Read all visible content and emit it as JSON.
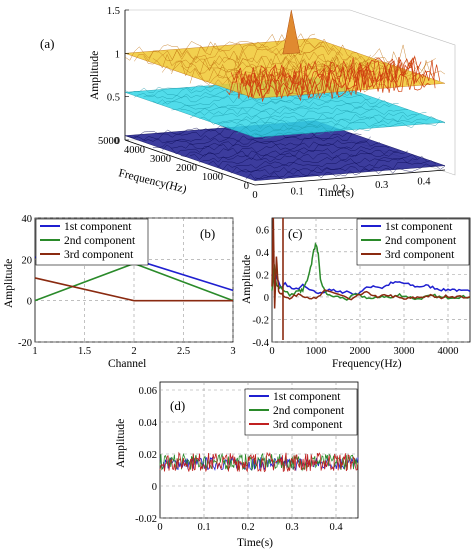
{
  "figure": {
    "panel_a": "(a)",
    "panel_b": "(b)",
    "panel_c": "(c)",
    "panel_d": "(d)"
  },
  "chart_data": [
    {
      "panel": "(a)",
      "type": "area",
      "zlabel": "Amplitude",
      "xlabel": "Time(s)",
      "ylabel": "Frequency(Hz)",
      "z_ticks": [
        "0",
        "0.5",
        "1",
        "1.5"
      ],
      "t_ticks": [
        "0",
        "0.1",
        "0.2",
        "0.3",
        "0.4"
      ],
      "f_ticks": [
        "0",
        "1000",
        "2000",
        "3000",
        "4000",
        "5000"
      ],
      "series": [
        {
          "color": "#1a1a8c",
          "level": 0.05
        },
        {
          "color": "#33d6e6",
          "level": 0.55
        },
        {
          "color": "#f0c830",
          "level": 1.0
        }
      ],
      "colors": [
        "#1a1a8c",
        "#33d6e6",
        "#f0c830",
        "#d04010"
      ]
    },
    {
      "panel": "(b)",
      "type": "line",
      "xlabel": "Channel",
      "ylabel": "Amplitude",
      "xlim": [
        1,
        3
      ],
      "ylim": [
        -20,
        40
      ],
      "x_ticks": [
        "1",
        "1.5",
        "2",
        "2.5",
        "3"
      ],
      "y_ticks": [
        "-20",
        "0",
        "20",
        "40"
      ],
      "x": [
        1,
        2,
        3
      ],
      "series": [
        {
          "name": "1st component",
          "color": "#1f1fd0",
          "values": [
            21,
            20,
            5
          ]
        },
        {
          "name": "2nd component",
          "color": "#2a8a2a",
          "values": [
            0,
            18,
            0
          ]
        },
        {
          "name": "3rd component",
          "color": "#8a2a10",
          "values": [
            11,
            0,
            0
          ]
        }
      ],
      "legend": "top-left"
    },
    {
      "panel": "(c)",
      "type": "line",
      "xlabel": "Frequency(Hz)",
      "ylabel": "Amplitude",
      "xlim": [
        0,
        4500
      ],
      "ylim": [
        -0.4,
        0.7
      ],
      "x_ticks": [
        "0",
        "1000",
        "2000",
        "3000",
        "4000"
      ],
      "y_ticks": [
        "-0.4",
        "-0.2",
        "0",
        "0.2",
        "0.4",
        "0.6"
      ],
      "series": [
        {
          "name": "1st component",
          "color": "#1f1fd0",
          "x": [
            0,
            50,
            100,
            200,
            300,
            500,
            700,
            900,
            1100,
            1300,
            1500,
            1700,
            1900,
            2100,
            2300,
            2500,
            2700,
            2900,
            3100,
            3300,
            3500,
            3700,
            3900,
            4100,
            4300,
            4500
          ],
          "values": [
            0.2,
            0.25,
            0.18,
            0.08,
            0.12,
            0.06,
            0.1,
            0.05,
            0.03,
            0.07,
            0.04,
            0.05,
            0.02,
            0.07,
            0.1,
            0.08,
            0.12,
            0.13,
            0.11,
            0.09,
            0.1,
            0.08,
            0.06,
            0.07,
            0.05,
            0.05
          ]
        },
        {
          "name": "2nd component",
          "color": "#2a8a2a",
          "x": [
            0,
            50,
            100,
            200,
            400,
            600,
            700,
            800,
            900,
            950,
            1000,
            1050,
            1100,
            1200,
            1300,
            1500,
            1700,
            1900,
            2100,
            2300,
            2500,
            2700,
            2900,
            3100,
            3300,
            3500,
            3700,
            3900,
            4100,
            4300,
            4500
          ],
          "values": [
            0.05,
            0.3,
            0.1,
            0.08,
            0.02,
            0.05,
            0.06,
            0.15,
            0.3,
            0.42,
            0.47,
            0.38,
            0.15,
            0.05,
            0.01,
            0.0,
            -0.02,
            0.02,
            0.0,
            -0.02,
            0.01,
            -0.01,
            0.02,
            0.0,
            -0.02,
            0.0,
            0.01,
            -0.01,
            0.0,
            0.0,
            0.0
          ]
        },
        {
          "name": "3rd component",
          "color": "#8a2a10",
          "x": [
            0,
            30,
            60,
            100,
            150,
            250,
            400,
            600,
            800,
            1000,
            1200,
            1400,
            1600,
            1800,
            2000,
            2200,
            2400,
            2600,
            2800,
            3000,
            3200,
            3400,
            3600,
            3800,
            4000,
            4200,
            4500
          ],
          "values": [
            0.1,
            0.7,
            -0.1,
            0.35,
            0.05,
            0.02,
            -0.02,
            0.03,
            0.0,
            -0.02,
            0.05,
            0.04,
            0.01,
            -0.03,
            0.02,
            0.04,
            -0.01,
            0.02,
            0.0,
            -0.02,
            -0.01,
            0.0,
            0.01,
            -0.01,
            0.01,
            0.0,
            0.0
          ]
        }
      ],
      "legend": "top-right"
    },
    {
      "panel": "(d)",
      "type": "line",
      "xlabel": "Time(s)",
      "ylabel": "Amplitude",
      "xlim": [
        0,
        0.45
      ],
      "ylim": [
        -0.02,
        0.065
      ],
      "x_ticks": [
        "0",
        "0.1",
        "0.2",
        "0.3",
        "0.4"
      ],
      "y_ticks": [
        "-0.02",
        "0",
        "0.02",
        "0.04",
        "0.06"
      ],
      "series": [
        {
          "name": "1st component",
          "color": "#1f1fd0",
          "mean": 0.014,
          "spread": 0.004
        },
        {
          "name": "2nd component",
          "color": "#2a8a2a",
          "mean": 0.015,
          "spread": 0.005
        },
        {
          "name": "3rd component",
          "color": "#c02020",
          "mean": 0.015,
          "spread": 0.006
        }
      ],
      "legend": "top-right"
    }
  ]
}
